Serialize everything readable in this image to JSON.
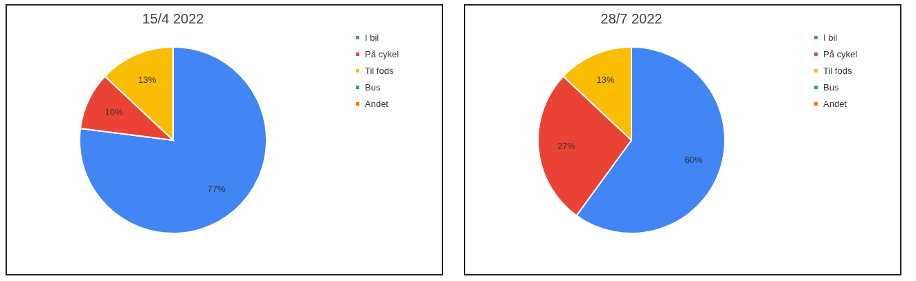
{
  "chart_data": [
    {
      "type": "pie",
      "title": "15/4 2022",
      "categories": [
        "I bil",
        "På cykel",
        "Til fods",
        "Bus",
        "Andet"
      ],
      "values": [
        77,
        10,
        13,
        0,
        0
      ],
      "colors": [
        "#4285f4",
        "#ea4335",
        "#fbbc04",
        "#34a853",
        "#ff6d01"
      ],
      "value_labels": [
        "77%",
        "10%",
        "13%",
        null,
        null
      ],
      "legend": "right"
    },
    {
      "type": "pie",
      "title": "28/7 2022",
      "categories": [
        "I bil",
        "På cykel",
        "Til fods",
        "Bus",
        "Andet"
      ],
      "values": [
        60,
        27,
        13,
        0,
        0
      ],
      "colors": [
        "#4285f4",
        "#ea4335",
        "#fbbc04",
        "#34a853",
        "#ff6d01"
      ],
      "value_labels": [
        "60%",
        "27%",
        "13%",
        null,
        null
      ],
      "legend": "right"
    }
  ]
}
